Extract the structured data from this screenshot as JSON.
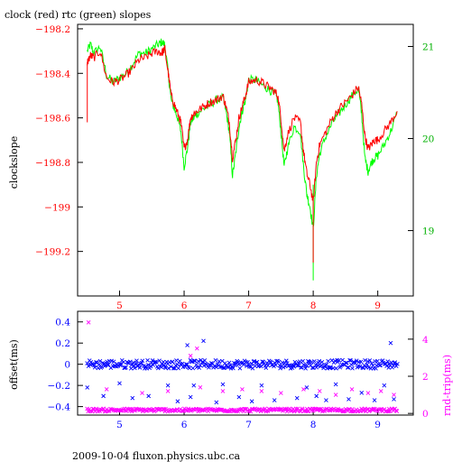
{
  "title": "clock (red) rtc (green) slopes",
  "footer": "2009-10-04 fluxon.physics.ubc.ca",
  "colors": {
    "red": "#ff0000",
    "green": "#00ff00",
    "blue": "#0000ff",
    "magenta": "#ff00ff",
    "black": "#000000"
  },
  "chart_data": [
    {
      "type": "line",
      "title": "clock (red) rtc (green) slopes",
      "xlabel": "",
      "ylabel": "clockslope",
      "xlim": [
        4.35,
        9.55
      ],
      "ylim": [
        -199.4,
        -198.18
      ],
      "y2lim": [
        18.29,
        21.24
      ],
      "x_ticks": [
        5,
        6,
        7,
        8,
        9
      ],
      "y_ticks": [
        -199.2,
        -199,
        -198.8,
        -198.6,
        -198.4,
        -198.2
      ],
      "y_tick_labels": [
        "−199.2",
        "−199",
        "−198.8",
        "−198.6",
        "−198.4",
        "−198.2"
      ],
      "y2_ticks": [
        19,
        20,
        21
      ],
      "series": [
        {
          "color": "#ff0000",
          "axis": "left",
          "x": [
            4.5,
            4.55,
            4.6,
            4.7,
            4.8,
            4.9,
            5.0,
            5.1,
            5.2,
            5.3,
            5.4,
            5.5,
            5.6,
            5.65,
            5.7,
            5.75,
            5.8,
            5.85,
            5.9,
            5.95,
            6.0,
            6.05,
            6.1,
            6.15,
            6.2,
            6.3,
            6.4,
            6.5,
            6.6,
            6.65,
            6.7,
            6.75,
            6.8,
            6.85,
            6.9,
            6.95,
            7.0,
            7.1,
            7.2,
            7.3,
            7.4,
            7.45,
            7.5,
            7.55,
            7.6,
            7.7,
            7.8,
            7.85,
            7.9,
            7.95,
            8.0,
            8.05,
            8.1,
            8.2,
            8.3,
            8.4,
            8.5,
            8.6,
            8.7,
            8.75,
            8.8,
            8.85,
            8.9,
            8.95,
            9.0,
            9.1,
            9.2,
            9.3
          ],
          "y": [
            -198.35,
            -198.32,
            -198.33,
            -198.3,
            -198.42,
            -198.44,
            -198.43,
            -198.41,
            -198.38,
            -198.34,
            -198.33,
            -198.31,
            -198.3,
            -198.31,
            -198.29,
            -198.39,
            -198.5,
            -198.54,
            -198.58,
            -198.62,
            -198.74,
            -198.7,
            -198.6,
            -198.58,
            -198.57,
            -198.55,
            -198.53,
            -198.52,
            -198.5,
            -198.55,
            -198.62,
            -198.78,
            -198.7,
            -198.6,
            -198.55,
            -198.5,
            -198.44,
            -198.43,
            -198.44,
            -198.46,
            -198.48,
            -198.5,
            -198.6,
            -198.75,
            -198.68,
            -198.6,
            -198.62,
            -198.75,
            -198.85,
            -198.9,
            -198.98,
            -198.8,
            -198.72,
            -198.66,
            -198.6,
            -198.56,
            -198.53,
            -198.5,
            -198.46,
            -198.54,
            -198.68,
            -198.74,
            -198.72,
            -198.7,
            -198.7,
            -198.66,
            -198.62,
            -198.57
          ]
        },
        {
          "color": "#00ff00",
          "axis": "left",
          "x": [
            4.5,
            4.55,
            4.6,
            4.7,
            4.8,
            4.9,
            5.0,
            5.1,
            5.2,
            5.3,
            5.4,
            5.5,
            5.6,
            5.65,
            5.7,
            5.75,
            5.8,
            5.85,
            5.9,
            5.95,
            6.0,
            6.05,
            6.1,
            6.15,
            6.2,
            6.3,
            6.4,
            6.5,
            6.6,
            6.65,
            6.7,
            6.75,
            6.8,
            6.85,
            6.9,
            6.95,
            7.0,
            7.1,
            7.2,
            7.3,
            7.4,
            7.45,
            7.5,
            7.55,
            7.6,
            7.7,
            7.8,
            7.85,
            7.9,
            7.95,
            8.0,
            8.05,
            8.1,
            8.2,
            8.3,
            8.4,
            8.5,
            8.6,
            8.7,
            8.75,
            8.8,
            8.85,
            8.9,
            8.95,
            9.0,
            9.1,
            9.2,
            9.3
          ],
          "y": [
            -198.3,
            -198.27,
            -198.31,
            -198.28,
            -198.41,
            -198.44,
            -198.42,
            -198.4,
            -198.36,
            -198.31,
            -198.31,
            -198.29,
            -198.27,
            -198.26,
            -198.27,
            -198.39,
            -198.52,
            -198.56,
            -198.6,
            -198.66,
            -198.82,
            -198.74,
            -198.62,
            -198.6,
            -198.58,
            -198.56,
            -198.54,
            -198.52,
            -198.51,
            -198.57,
            -198.66,
            -198.86,
            -198.76,
            -198.64,
            -198.57,
            -198.52,
            -198.43,
            -198.43,
            -198.45,
            -198.47,
            -198.49,
            -198.52,
            -198.66,
            -198.82,
            -198.74,
            -198.64,
            -198.66,
            -198.82,
            -198.94,
            -199.0,
            -199.1,
            -198.86,
            -198.76,
            -198.68,
            -198.62,
            -198.58,
            -198.54,
            -198.5,
            -198.47,
            -198.58,
            -198.78,
            -198.84,
            -198.8,
            -198.78,
            -198.77,
            -198.72,
            -198.66,
            -198.58
          ]
        }
      ]
    },
    {
      "type": "scatter",
      "xlabel": "",
      "ylabel": "offset(ms)",
      "y2label": "rnd-trip(ms)",
      "xlim": [
        4.35,
        9.55
      ],
      "ylim": [
        -0.48,
        0.5
      ],
      "y2lim": [
        -0.09,
        5.5
      ],
      "x_ticks": [
        5,
        6,
        7,
        8,
        9
      ],
      "y_ticks": [
        -0.4,
        -0.2,
        0,
        0.2,
        0.4
      ],
      "y_tick_labels": [
        "−0.4",
        "−0.2",
        "0",
        "0.2",
        "0.4"
      ],
      "y2_ticks": [
        0,
        2,
        4
      ],
      "series": [
        {
          "color": "#0000ff",
          "marker": "x",
          "axis": "left",
          "band_center": 0.0,
          "band_spread": 0.04,
          "xrange": [
            4.5,
            9.3
          ],
          "outliers": {
            "x": [
              4.5,
              4.75,
              5.0,
              5.2,
              5.45,
              5.75,
              5.9,
              6.05,
              6.1,
              6.15,
              6.3,
              6.5,
              6.6,
              6.85,
              7.05,
              7.2,
              7.4,
              7.75,
              7.9,
              8.05,
              8.2,
              8.35,
              8.55,
              8.75,
              8.95,
              9.1,
              9.2,
              9.25
            ],
            "y": [
              -0.22,
              -0.3,
              -0.18,
              -0.32,
              -0.3,
              -0.2,
              -0.35,
              0.18,
              -0.31,
              -0.2,
              0.22,
              -0.36,
              -0.19,
              -0.31,
              -0.35,
              -0.2,
              -0.34,
              -0.32,
              -0.22,
              -0.3,
              -0.34,
              -0.19,
              -0.33,
              -0.27,
              -0.34,
              -0.2,
              0.2,
              -0.33
            ]
          }
        },
        {
          "color": "#ff00ff",
          "marker": "x",
          "axis": "right",
          "band_center": 0.18,
          "band_spread": 0.08,
          "xrange": [
            4.5,
            9.3
          ],
          "outliers": {
            "x": [
              4.52,
              4.8,
              5.35,
              5.75,
              6.1,
              6.2,
              6.25,
              6.6,
              6.9,
              7.2,
              7.5,
              7.85,
              8.1,
              8.35,
              8.6,
              8.85,
              9.05,
              9.25
            ],
            "y": [
              4.9,
              1.3,
              1.1,
              1.2,
              3.1,
              3.5,
              1.4,
              1.2,
              1.3,
              1.2,
              1.1,
              1.3,
              1.2,
              1.0,
              1.3,
              1.1,
              1.2,
              1.0
            ]
          }
        }
      ]
    }
  ]
}
